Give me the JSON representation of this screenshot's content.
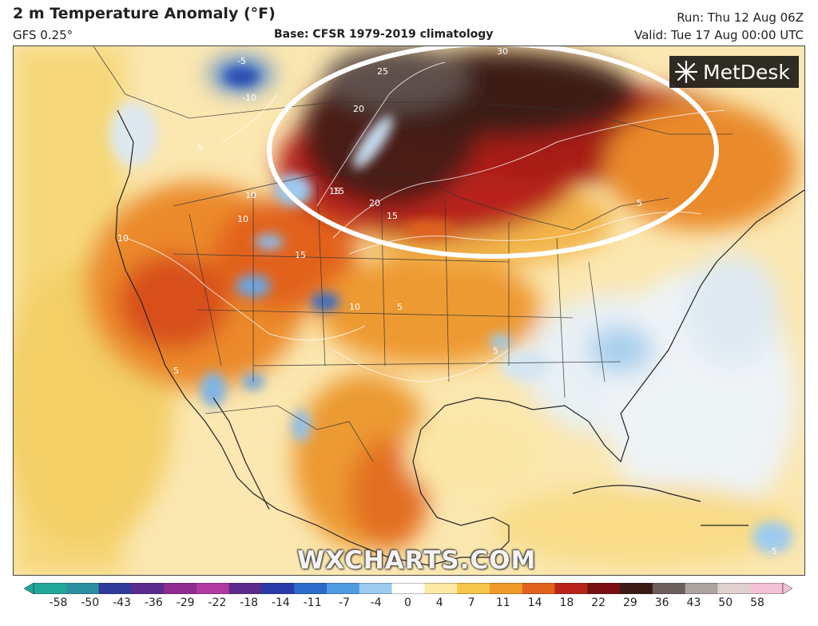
{
  "header": {
    "title": "2 m Temperature Anomaly (°F)",
    "model": "GFS 0.25°",
    "base": "Base: CFSR 1979-2019 climatology",
    "run": "Run: Thu 12 Aug 06Z",
    "valid": "Valid: Tue 17 Aug 00:00 UTC"
  },
  "logo": {
    "text": "MetDesk",
    "icon": "metdesk-star-icon"
  },
  "watermark": "WXCHARTS.COM",
  "map": {
    "contour_labels": [
      "-5",
      "-10",
      "5",
      "10",
      "15",
      "20",
      "25",
      "30",
      "15",
      "20",
      "15",
      "10",
      "10",
      "15",
      "10",
      "5",
      "5",
      "5",
      "5",
      "-5"
    ],
    "highlight": "white ellipse around northern plains / southern Canada heat"
  },
  "legend": {
    "ticks": [
      "-58",
      "-50",
      "-43",
      "-36",
      "-29",
      "-22",
      "-18",
      "-14",
      "-11",
      "-7",
      "-4",
      "0",
      "4",
      "7",
      "11",
      "14",
      "18",
      "22",
      "29",
      "36",
      "43",
      "50",
      "58"
    ],
    "colors": [
      "#1fa89a",
      "#2a8fa0",
      "#303a9a",
      "#5b2a8e",
      "#8e2c8f",
      "#b03aa0",
      "#5c2a8a",
      "#2a3aa8",
      "#2b6cc8",
      "#4f9be0",
      "#9ccbef",
      "#ffffff",
      "#fde8a6",
      "#f5c64a",
      "#ef9a2a",
      "#e0621c",
      "#b8241a",
      "#7a0e12",
      "#3c1a16",
      "#6b5e5c",
      "#aaa3a0",
      "#e0d0ce",
      "#f4c2d6"
    ]
  }
}
